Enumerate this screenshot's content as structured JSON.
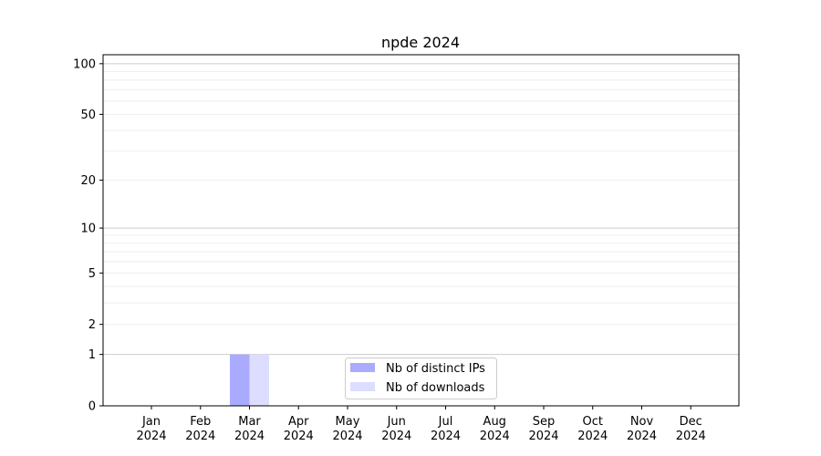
{
  "chart_data": {
    "type": "bar",
    "title": "npde 2024",
    "xlabel": "",
    "ylabel": "",
    "yscale": "log(1+y)",
    "ylim": [
      0,
      113
    ],
    "grid": true,
    "legend_placement": "lower-center",
    "categories": [
      "Jan\n2024",
      "Feb\n2024",
      "Mar\n2024",
      "Apr\n2024",
      "May\n2024",
      "Jun\n2024",
      "Jul\n2024",
      "Aug\n2024",
      "Sep\n2024",
      "Oct\n2024",
      "Nov\n2024",
      "Dec\n2024"
    ],
    "yticks": [
      0,
      1,
      2,
      5,
      10,
      20,
      50,
      100
    ],
    "series": [
      {
        "name": "Nb of distinct IPs",
        "color": "#aaaaff",
        "values": [
          0,
          0,
          1,
          0,
          0,
          0,
          0,
          0,
          0,
          0,
          0,
          0
        ]
      },
      {
        "name": "Nb of downloads",
        "color": "#ddddff",
        "values": [
          0,
          0,
          1,
          0,
          0,
          0,
          0,
          0,
          0,
          0,
          0,
          0
        ]
      }
    ]
  }
}
